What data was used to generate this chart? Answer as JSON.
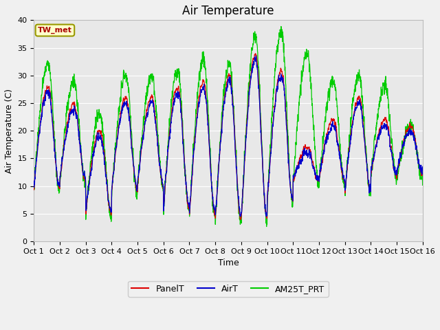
{
  "title": "Air Temperature",
  "ylabel": "Air Temperature (C)",
  "xlabel": "Time",
  "annotation": "TW_met",
  "ylim": [
    0,
    40
  ],
  "xlim": [
    0,
    15
  ],
  "xtick_labels": [
    "Oct 1",
    "Oct 2",
    "Oct 3",
    "Oct 4",
    "Oct 5",
    "Oct 6",
    "Oct 7",
    "Oct 8",
    "Oct 9",
    "Oct 10",
    "Oct 11",
    "Oct 12",
    "Oct 13",
    "Oct 14",
    "Oct 15",
    "Oct 16"
  ],
  "ytick_labels": [
    "0",
    "5",
    "10",
    "15",
    "20",
    "25",
    "30",
    "35",
    "40"
  ],
  "yticks": [
    0,
    5,
    10,
    15,
    20,
    25,
    30,
    35,
    40
  ],
  "series_colors": [
    "#dd0000",
    "#0000cc",
    "#00cc00"
  ],
  "series_names": [
    "PanelT",
    "AirT",
    "AM25T_PRT"
  ],
  "fig_facecolor": "#f0f0f0",
  "ax_facecolor": "#e8e8e8",
  "title_fontsize": 12,
  "label_fontsize": 9,
  "tick_fontsize": 8,
  "annotation_color": "#aa0000",
  "annotation_bg": "#ffffcc",
  "annotation_edge": "#999900",
  "grid_color": "#ffffff",
  "figsize": [
    6.4,
    4.8
  ],
  "dpi": 100
}
